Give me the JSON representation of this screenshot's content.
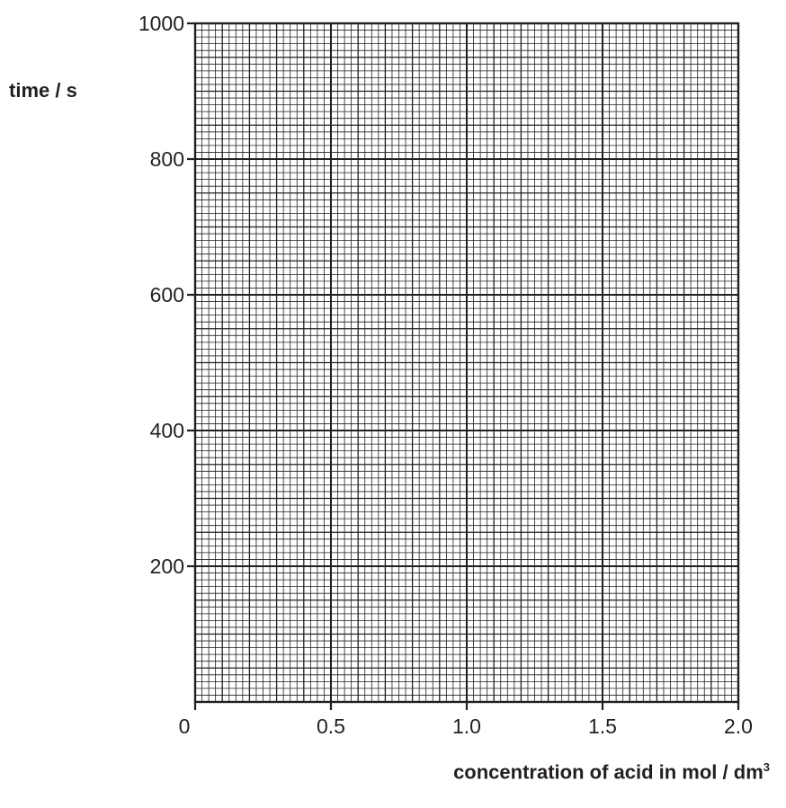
{
  "chart_data": {
    "type": "scatter",
    "title": "",
    "xlabel": "concentration of acid in mol / dm",
    "xlabel_superscript": "3",
    "ylabel": "time / s",
    "xlim": [
      0,
      2.0
    ],
    "ylim": [
      0,
      1000
    ],
    "x_ticks": [
      "0",
      "0.5",
      "1.0",
      "1.5",
      "2.0"
    ],
    "y_ticks": [
      "200",
      "400",
      "600",
      "800",
      "1000"
    ],
    "grid": true,
    "series": []
  }
}
